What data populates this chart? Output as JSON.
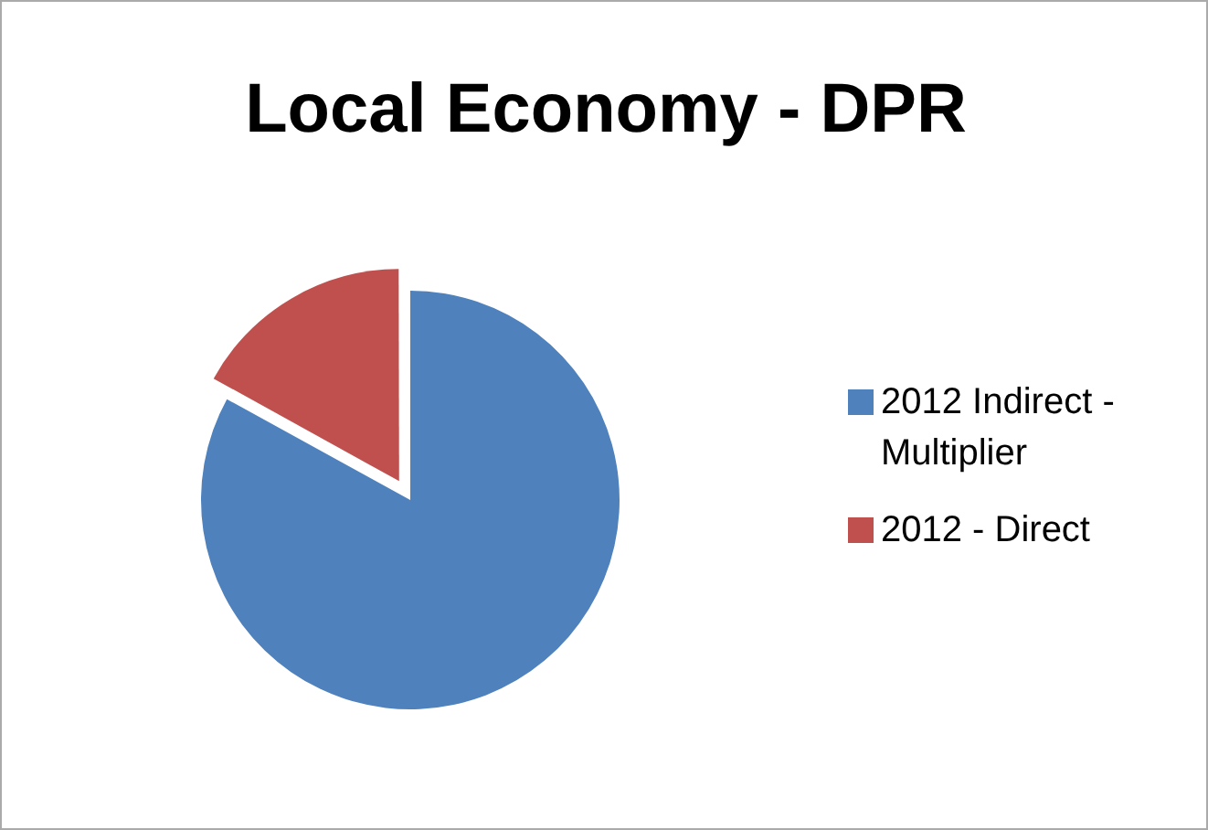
{
  "chart_data": {
    "type": "pie",
    "title": "Local Economy - DPR",
    "categories": [
      "2012 Indirect - Multiplier",
      "2012 - Direct"
    ],
    "values": [
      83,
      17
    ],
    "colors": [
      "#4f81bd",
      "#c0504d"
    ],
    "legend": "right"
  }
}
